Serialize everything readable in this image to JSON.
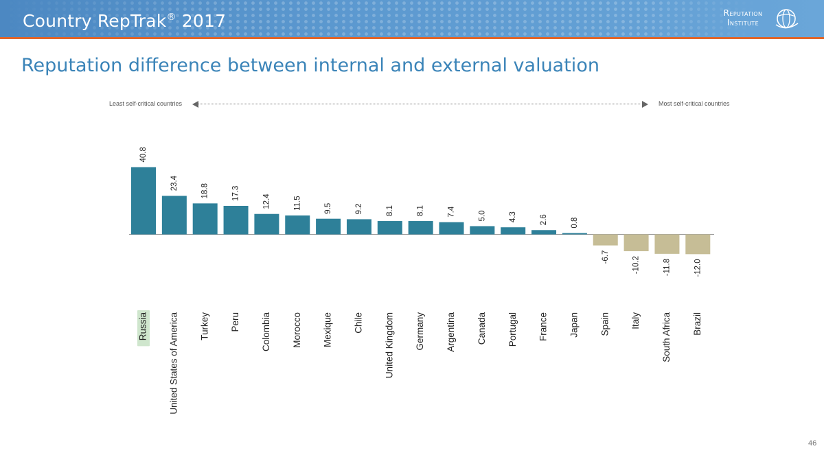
{
  "header": {
    "title": "Country RepTrak",
    "title_mark": "®",
    "title_year": "2017",
    "logo_line1": "Reputation",
    "logo_line2": "Institute"
  },
  "slide_title": "Reputation difference between internal and external valuation",
  "arrow": {
    "left_label": "Least self-critical countries",
    "right_label": "Most self-critical countries"
  },
  "page_number": "46",
  "colors": {
    "header_bg": "#5b98cf",
    "header_rule": "#e0662a",
    "title_text": "#3b84b8",
    "bar_positive": "#2e8099",
    "bar_negative": "#c6bd96",
    "highlight_label_bg": "#cfe6cd"
  },
  "chart_data": {
    "type": "bar",
    "categories": [
      "Russia",
      "United States of America",
      "Turkey",
      "Peru",
      "Colombia",
      "Morocco",
      "Mexique",
      "Chile",
      "United Kingdom",
      "Germany",
      "Argentina",
      "Canada",
      "Portugal",
      "France",
      "Japan",
      "Spain",
      "Italy",
      "South Africa",
      "Brazil"
    ],
    "values": [
      40.8,
      23.4,
      18.8,
      17.3,
      12.4,
      11.5,
      9.5,
      9.2,
      8.1,
      8.1,
      7.4,
      5.0,
      4.3,
      2.6,
      0.8,
      -6.7,
      -10.2,
      -11.8,
      -12.0
    ],
    "value_labels": [
      "40.8",
      "23.4",
      "18.8",
      "17.3",
      "12.4",
      "11.5",
      "9.5",
      "9.2",
      "8.1",
      "8.1",
      "7.4",
      "5.0",
      "4.3",
      "2.6",
      "0.8",
      "-6.7",
      "-10.2",
      "-11.8",
      "-12.0"
    ],
    "highlighted_category": "Russia",
    "title": "",
    "xlabel": "",
    "ylabel": "",
    "ylim": [
      -15,
      45
    ],
    "grid": false,
    "legend": "none"
  }
}
